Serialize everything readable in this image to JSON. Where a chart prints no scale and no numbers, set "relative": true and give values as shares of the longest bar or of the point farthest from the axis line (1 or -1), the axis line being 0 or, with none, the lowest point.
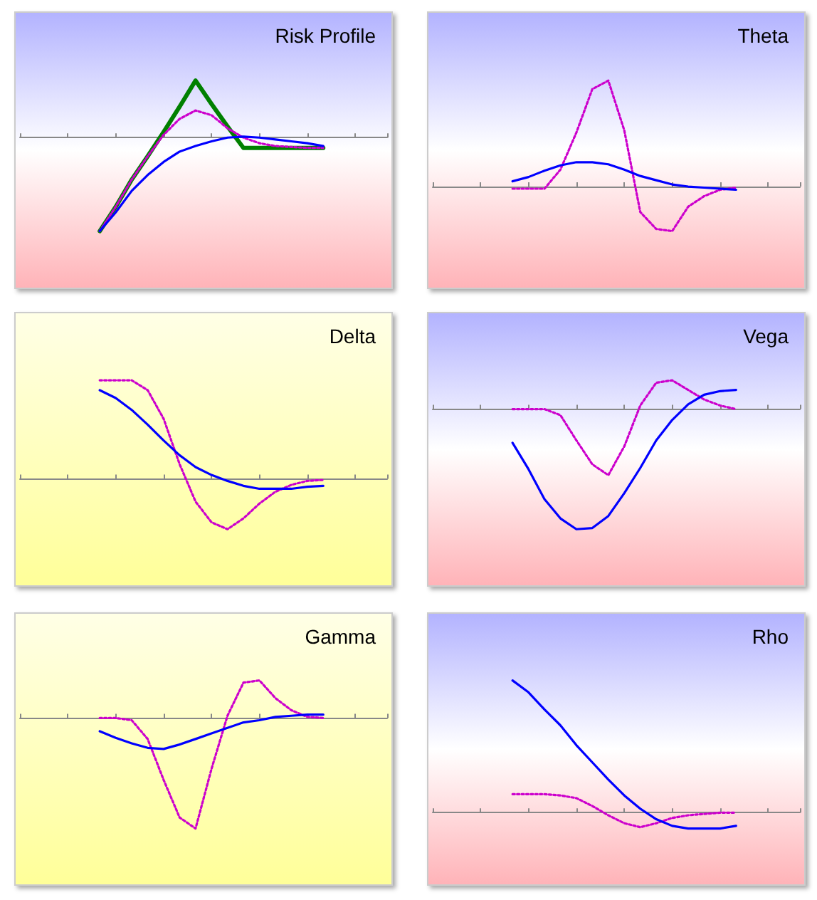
{
  "chart_data": [
    {
      "type": "line",
      "title": "Risk Profile",
      "relative": true,
      "marker": "none",
      "categories": [
        null,
        null,
        null,
        null,
        null,
        null,
        null,
        null,
        null,
        null,
        null,
        null,
        null,
        null,
        null,
        null,
        null,
        null,
        null,
        null,
        null,
        null,
        null,
        null
      ],
      "series": [
        {
          "color": "#008000",
          "line_style": "solid",
          "values": [
            null,
            null,
            null,
            null,
            null,
            -1,
            -0.74,
            -0.45,
            -0.2,
            0.06,
            0.33,
            0.61,
            0.36,
            0.12,
            -0.11,
            -0.11,
            -0.11,
            -0.11,
            -0.11,
            -0.11,
            null,
            null,
            null,
            null
          ]
        },
        {
          "color": "#cc00cc",
          "line_style": "dotted",
          "values": [
            null,
            null,
            null,
            null,
            null,
            -1,
            -0.74,
            -0.45,
            -0.2,
            0.03,
            0.2,
            0.29,
            0.24,
            0.1,
            0,
            -0.06,
            -0.09,
            -0.1,
            -0.11,
            -0.11,
            null,
            null,
            null,
            null
          ]
        },
        {
          "color": "#0000ff",
          "line_style": "solid",
          "values": [
            null,
            null,
            null,
            null,
            null,
            -1,
            -0.8,
            -0.57,
            -0.4,
            -0.26,
            -0.15,
            -0.09,
            -0.04,
            0,
            0.01,
            0,
            -0.02,
            -0.04,
            -0.06,
            -0.09,
            null,
            null,
            null,
            null
          ]
        }
      ]
    },
    {
      "type": "line",
      "title": "Theta",
      "relative": true,
      "marker": "none",
      "categories": [
        null,
        null,
        null,
        null,
        null,
        null,
        null,
        null,
        null,
        null,
        null,
        null,
        null,
        null,
        null,
        null,
        null,
        null,
        null,
        null,
        null,
        null,
        null,
        null
      ],
      "series": [
        {
          "color": "#cc00cc",
          "line_style": "dotted",
          "values": [
            null,
            null,
            null,
            null,
            null,
            -0.02,
            -0.02,
            -0.02,
            0.16,
            0.51,
            0.92,
            1,
            0.53,
            -0.24,
            -0.4,
            -0.42,
            -0.19,
            -0.09,
            -0.03,
            -0.01,
            null,
            null,
            null,
            null
          ]
        },
        {
          "color": "#0000ff",
          "line_style": "solid",
          "values": [
            null,
            null,
            null,
            null,
            null,
            0.05,
            0.09,
            0.15,
            0.2,
            0.23,
            0.23,
            0.21,
            0.16,
            0.1,
            0.06,
            0.02,
            0,
            -0.01,
            -0.02,
            -0.03,
            null,
            null,
            null,
            null
          ]
        }
      ]
    },
    {
      "type": "line",
      "title": "Delta",
      "relative": true,
      "marker": "none",
      "categories": [
        null,
        null,
        null,
        null,
        null,
        null,
        null,
        null,
        null,
        null,
        null,
        null,
        null,
        null,
        null,
        null,
        null,
        null,
        null,
        null,
        null,
        null,
        null,
        null
      ],
      "series": [
        {
          "color": "#cc00cc",
          "line_style": "dotted",
          "values": [
            null,
            null,
            null,
            null,
            null,
            1,
            1,
            1,
            0.9,
            0.61,
            0.15,
            -0.23,
            -0.44,
            -0.51,
            -0.4,
            -0.25,
            -0.13,
            -0.06,
            -0.02,
            -0.01,
            null,
            null,
            null,
            null
          ]
        },
        {
          "color": "#0000ff",
          "line_style": "solid",
          "values": [
            null,
            null,
            null,
            null,
            null,
            0.9,
            0.82,
            0.7,
            0.55,
            0.39,
            0.24,
            0.12,
            0.04,
            -0.02,
            -0.07,
            -0.1,
            -0.1,
            -0.1,
            -0.08,
            -0.07,
            null,
            null,
            null,
            null
          ]
        }
      ]
    },
    {
      "type": "line",
      "title": "Vega",
      "relative": true,
      "marker": "none",
      "categories": [
        null,
        null,
        null,
        null,
        null,
        null,
        null,
        null,
        null,
        null,
        null,
        null,
        null,
        null,
        null,
        null,
        null,
        null,
        null,
        null,
        null,
        null,
        null,
        null
      ],
      "series": [
        {
          "color": "#cc00cc",
          "line_style": "dotted",
          "values": [
            null,
            null,
            null,
            null,
            null,
            0,
            0,
            0,
            -0.05,
            -0.26,
            -0.46,
            -0.55,
            -0.31,
            0.03,
            0.22,
            0.24,
            0.16,
            0.08,
            0.03,
            0,
            null,
            null,
            null,
            null
          ]
        },
        {
          "color": "#0000ff",
          "line_style": "solid",
          "values": [
            null,
            null,
            null,
            null,
            null,
            -0.28,
            -0.5,
            -0.75,
            -0.91,
            -1,
            -0.99,
            -0.89,
            -0.7,
            -0.49,
            -0.26,
            -0.09,
            0.04,
            0.12,
            0.15,
            0.16,
            null,
            null,
            null,
            null
          ]
        }
      ]
    },
    {
      "type": "line",
      "title": "Gamma",
      "relative": true,
      "marker": "none",
      "categories": [
        null,
        null,
        null,
        null,
        null,
        null,
        null,
        null,
        null,
        null,
        null,
        null,
        null,
        null,
        null,
        null,
        null,
        null,
        null,
        null,
        null,
        null,
        null,
        null
      ],
      "series": [
        {
          "color": "#cc00cc",
          "line_style": "dotted",
          "values": [
            null,
            null,
            null,
            null,
            null,
            0,
            0,
            -0.02,
            -0.19,
            -0.56,
            -0.9,
            -1,
            -0.46,
            0.02,
            0.32,
            0.34,
            0.18,
            0.07,
            0.01,
            0,
            null,
            null,
            null,
            null
          ]
        },
        {
          "color": "#0000ff",
          "line_style": "solid",
          "values": [
            null,
            null,
            null,
            null,
            null,
            -0.12,
            -0.18,
            -0.23,
            -0.27,
            -0.28,
            -0.24,
            -0.19,
            -0.14,
            -0.09,
            -0.04,
            -0.02,
            0.01,
            0.02,
            0.03,
            0.03,
            null,
            null,
            null,
            null
          ]
        }
      ]
    },
    {
      "type": "line",
      "title": "Rho",
      "relative": true,
      "marker": "none",
      "categories": [
        null,
        null,
        null,
        null,
        null,
        null,
        null,
        null,
        null,
        null,
        null,
        null,
        null,
        null,
        null,
        null,
        null,
        null,
        null,
        null,
        null,
        null,
        null,
        null
      ],
      "series": [
        {
          "color": "#cc00cc",
          "line_style": "dotted",
          "values": [
            null,
            null,
            null,
            null,
            null,
            0.14,
            0.14,
            0.14,
            0.13,
            0.11,
            0.05,
            -0.02,
            -0.08,
            -0.11,
            -0.08,
            -0.04,
            -0.02,
            -0.01,
            0,
            0,
            null,
            null,
            null,
            null
          ]
        },
        {
          "color": "#0000ff",
          "line_style": "solid",
          "values": [
            null,
            null,
            null,
            null,
            null,
            1,
            0.91,
            0.78,
            0.66,
            0.51,
            0.38,
            0.25,
            0.13,
            0.03,
            -0.05,
            -0.1,
            -0.12,
            -0.12,
            -0.12,
            -0.1,
            null,
            null,
            null,
            null
          ]
        }
      ]
    }
  ]
}
